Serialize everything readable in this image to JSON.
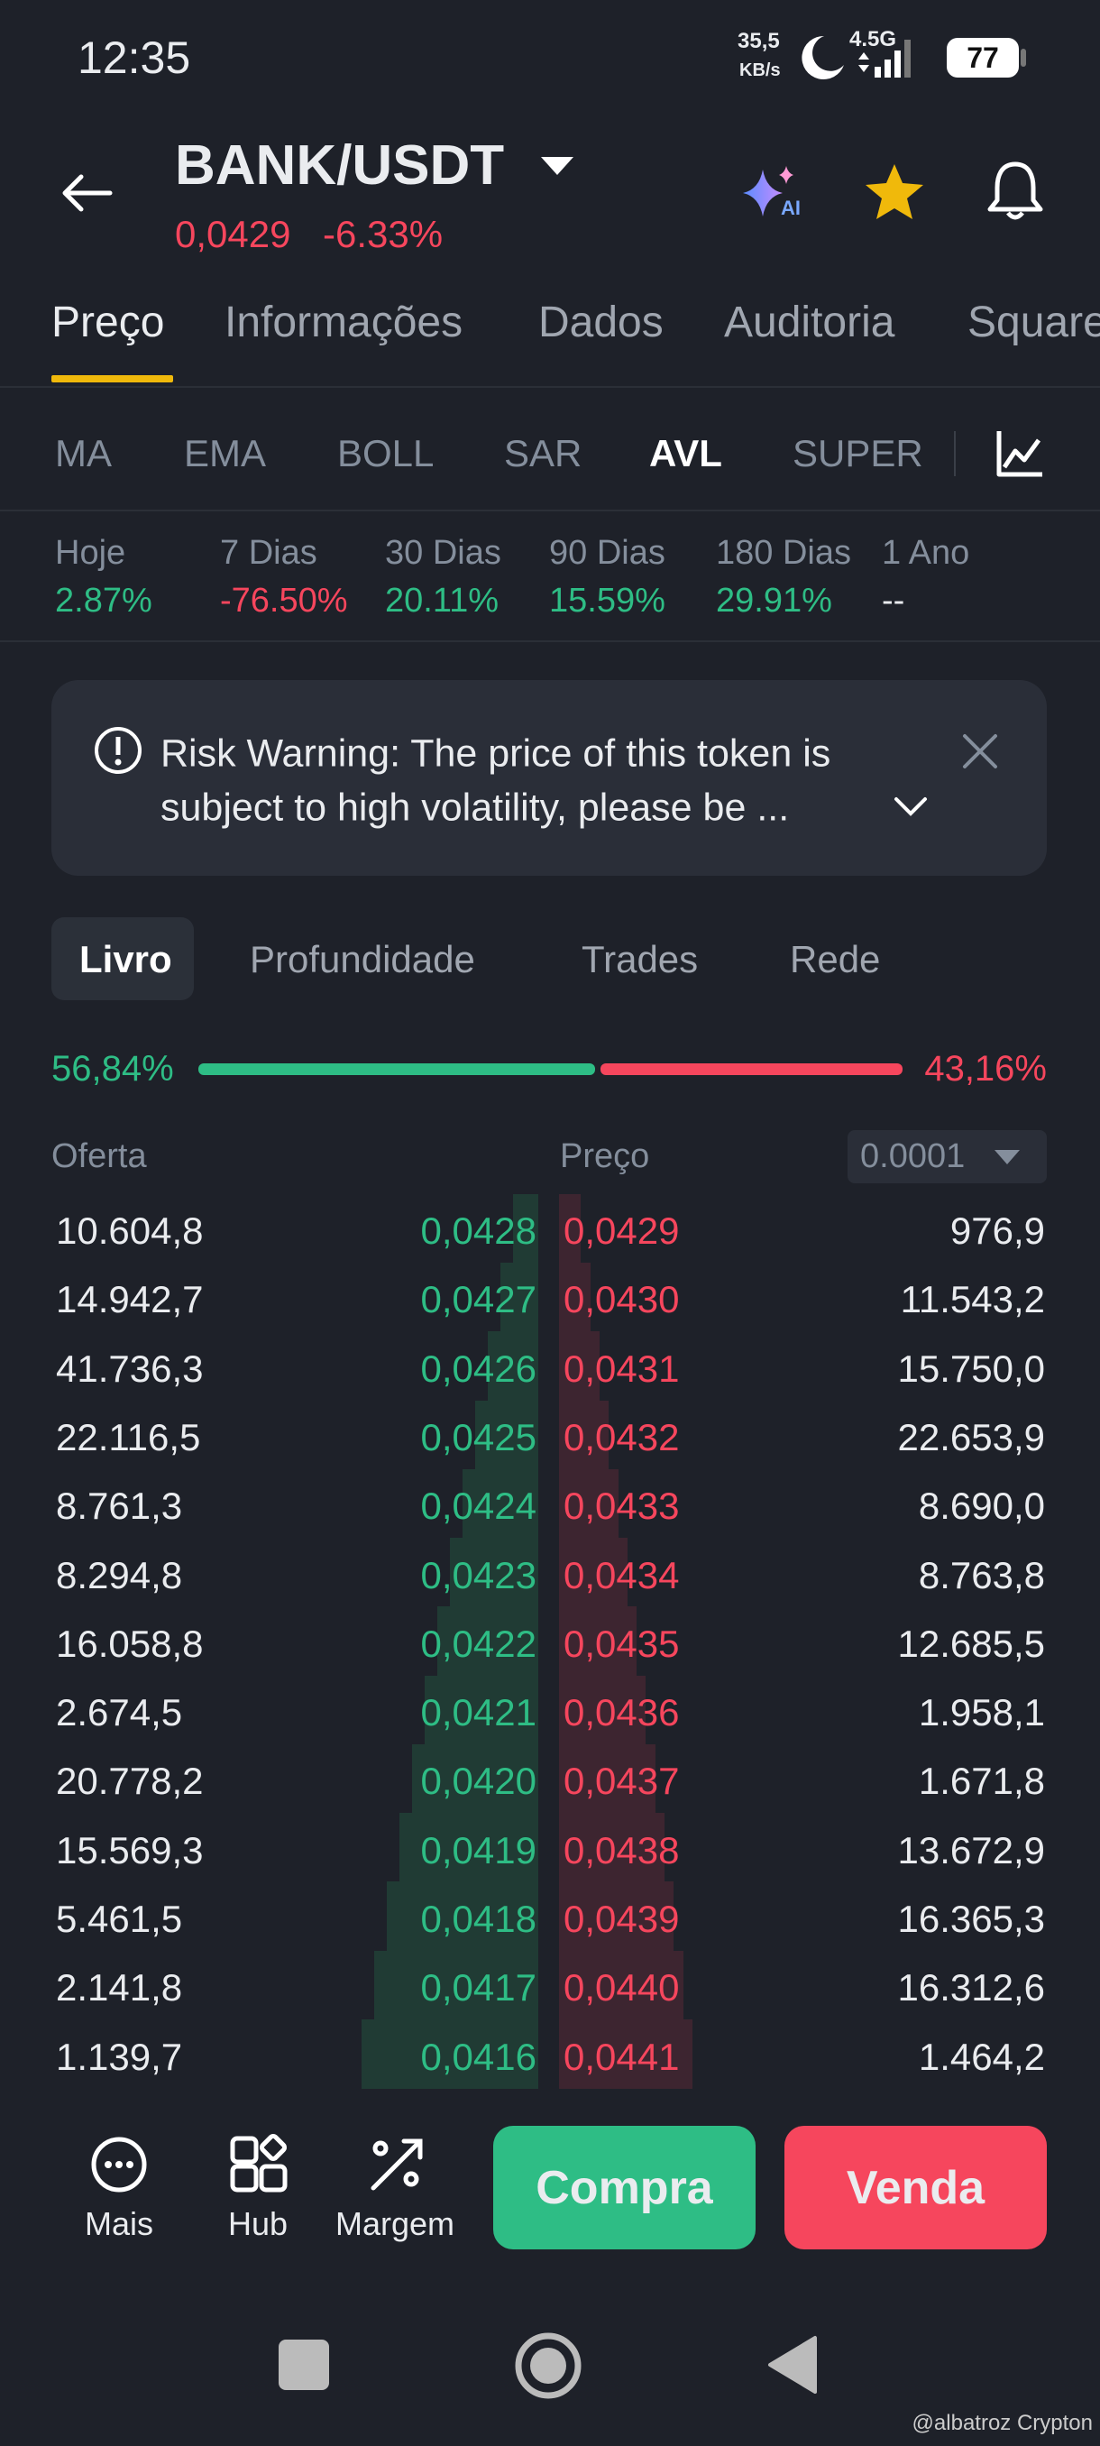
{
  "status": {
    "time": "12:35",
    "speed": "35,5",
    "speed_unit": "KB/s",
    "network": "4.5G",
    "battery": "77"
  },
  "header": {
    "pair": "BANK/USDT",
    "price": "0,0429",
    "change": "-6.33%"
  },
  "tabs": [
    "Preço",
    "Informações",
    "Dados",
    "Auditoria",
    "Square"
  ],
  "indicators": [
    "MA",
    "EMA",
    "BOLL",
    "SAR",
    "AVL",
    "SUPER"
  ],
  "stats": [
    {
      "label": "Hoje",
      "value": "2.87%",
      "color": "#2ebd85"
    },
    {
      "label": "7 Dias",
      "value": "-76.50%",
      "color": "#f6465d"
    },
    {
      "label": "30 Dias",
      "value": "20.11%",
      "color": "#2ebd85"
    },
    {
      "label": "90 Dias",
      "value": "15.59%",
      "color": "#2ebd85"
    },
    {
      "label": "180 Dias",
      "value": "29.91%",
      "color": "#2ebd85"
    },
    {
      "label": "1 Ano",
      "value": "--",
      "color": "#eaecef"
    }
  ],
  "risk_warning": [
    "Risk Warning: The price of this token is",
    "subject to high volatility, please be ..."
  ],
  "book_tabs": [
    "Livro",
    "Profundidade",
    "Trades",
    "Rede"
  ],
  "ratio": {
    "buy": "56,84%",
    "sell": "43,16%"
  },
  "columns": {
    "bid": "Oferta",
    "price": "Preço",
    "precision": "0.0001"
  },
  "rows": [
    [
      "10.604,8",
      "0,0428",
      "0,0429",
      "976,9"
    ],
    [
      "14.942,7",
      "0,0427",
      "0,0430",
      "11.543,2"
    ],
    [
      "41.736,3",
      "0,0426",
      "0,0431",
      "15.750,0"
    ],
    [
      "22.116,5",
      "0,0425",
      "0,0432",
      "22.653,9"
    ],
    [
      "8.761,3",
      "0,0424",
      "0,0433",
      "8.690,0"
    ],
    [
      "8.294,8",
      "0,0423",
      "0,0434",
      "8.763,8"
    ],
    [
      "16.058,8",
      "0,0422",
      "0,0435",
      "12.685,5"
    ],
    [
      "2.674,5",
      "0,0421",
      "0,0436",
      "1.958,1"
    ],
    [
      "20.778,2",
      "0,0420",
      "0,0437",
      "1.671,8"
    ],
    [
      "15.569,3",
      "0,0419",
      "0,0438",
      "13.672,9"
    ],
    [
      "5.461,5",
      "0,0418",
      "0,0439",
      "16.365,3"
    ],
    [
      "2.141,8",
      "0,0417",
      "0,0440",
      "16.312,6"
    ],
    [
      "1.139,7",
      "0,0416",
      "0,0441",
      "1.464,2"
    ]
  ],
  "actions": {
    "more": "Mais",
    "hub": "Hub",
    "margin": "Margem",
    "buy": "Compra",
    "sell": "Venda"
  },
  "watermark": "@albatroz Crypton"
}
